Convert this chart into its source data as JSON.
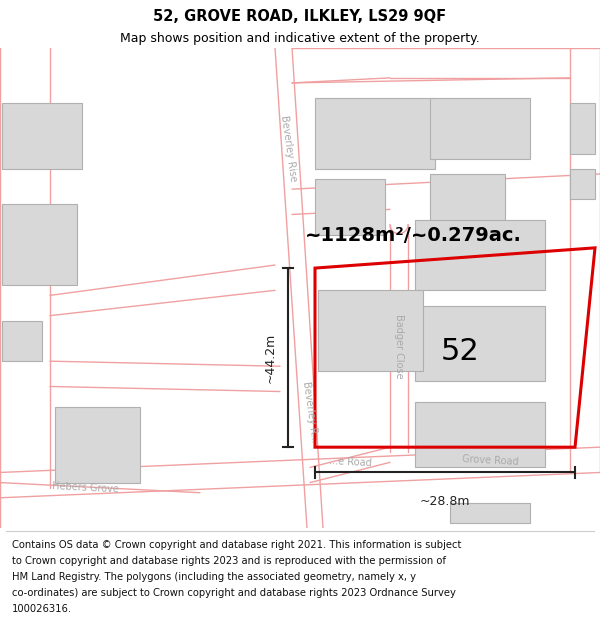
{
  "title": "52, GROVE ROAD, ILKLEY, LS29 9QF",
  "subtitle": "Map shows position and indicative extent of the property.",
  "footer_lines": [
    "Contains OS data © Crown copyright and database right 2021. This information is subject",
    "to Crown copyright and database rights 2023 and is reproduced with the permission of",
    "HM Land Registry. The polygons (including the associated geometry, namely x, y",
    "co-ordinates) are subject to Crown copyright and database rights 2023 Ordnance Survey",
    "100026316."
  ],
  "area_label": "~1128m²/~0.279ac.",
  "property_number": "52",
  "width_label": "~28.8m",
  "height_label": "~44.2m",
  "bg_color": "#ffffff",
  "road_line_color": "#f0a0a0",
  "building_fill": "#d8d8d8",
  "building_edge": "#b0b0b0",
  "property_fill": "#ffffff",
  "property_edge": "#dd0000",
  "dim_color": "#222222",
  "street_label_color": "#aaaaaa",
  "title_color": "#000000",
  "map_bg": "#ffffff",
  "title_fontsize": 10.5,
  "subtitle_fontsize": 9,
  "footer_fontsize": 7.2,
  "area_fontsize": 14,
  "number_fontsize": 22,
  "dim_fontsize": 9,
  "street_fontsize": 7
}
